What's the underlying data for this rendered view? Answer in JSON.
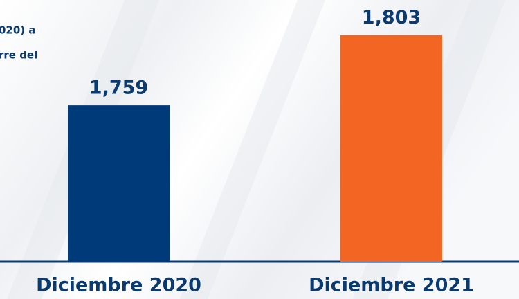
{
  "chart_data": {
    "type": "bar",
    "annotation": [
      "020) a",
      "rre del"
    ],
    "categories": [
      "Diciembre 2020",
      "Diciembre 2021"
    ],
    "values": [
      1759,
      1803
    ],
    "value_labels": [
      "1,759",
      "1,803"
    ],
    "colors": [
      "#003a78",
      "#f26522"
    ],
    "ylim": [
      1661,
      1825
    ]
  }
}
